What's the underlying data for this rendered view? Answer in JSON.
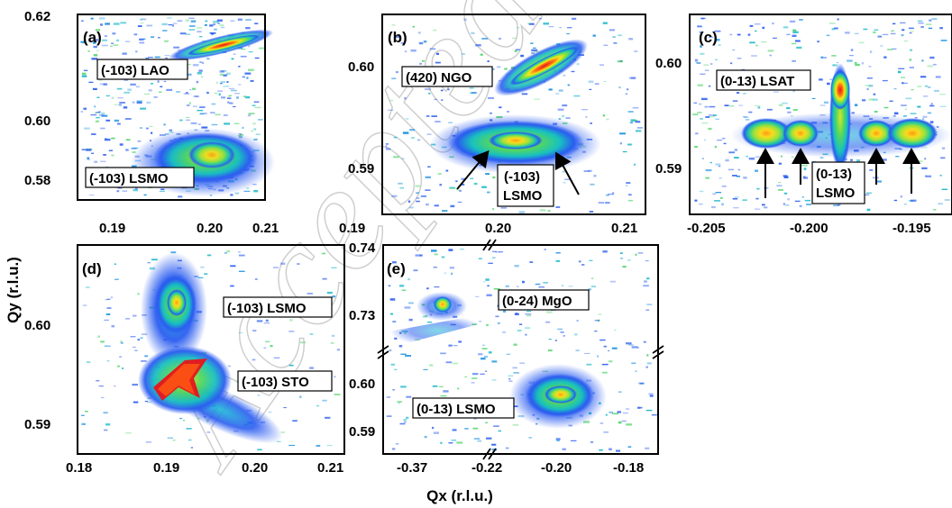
{
  "chart_data": [
    {
      "type": "heatmap",
      "panel": "(a)",
      "xlim": [
        0.185,
        0.21
      ],
      "ylim": [
        0.572,
        0.62
      ],
      "x_ticks": [
        "0.19",
        "0.20",
        "0.21"
      ],
      "y_ticks": [
        "0.62",
        "0.60",
        "0.58"
      ],
      "peaks": [
        {
          "label": "(-103) LAO",
          "x": 0.2,
          "y": 0.612
        },
        {
          "label": "(-103) LSMO",
          "x": 0.198,
          "y": 0.584
        }
      ]
    },
    {
      "type": "heatmap",
      "panel": "(b)",
      "xlim": [
        0.19,
        0.21
      ],
      "ylim": [
        0.585,
        0.605
      ],
      "x_ticks": [
        "0.19",
        "0.20",
        "0.21"
      ],
      "y_ticks": [
        "0.60",
        "0.59"
      ],
      "peaks": [
        {
          "label": "(420) NGO",
          "x": 0.2015,
          "y": 0.5995
        },
        {
          "label": "(-103)\nLSMO",
          "x": 0.201,
          "y": 0.592
        }
      ]
    },
    {
      "type": "heatmap",
      "panel": "(c)",
      "xlim": [
        -0.2065,
        -0.1925
      ],
      "ylim": [
        0.585,
        0.605
      ],
      "x_ticks": [
        "-0.205",
        "-0.200",
        "-0.195"
      ],
      "y_ticks": [
        "0.60",
        "0.59"
      ],
      "peaks": [
        {
          "label": "(0-13) LSAT",
          "x": -0.1988,
          "y": 0.597
        },
        {
          "label": "(0-13)\nLSMO",
          "x": -0.1988,
          "y": 0.5925
        }
      ]
    },
    {
      "type": "heatmap",
      "panel": "(d)",
      "xlim": [
        0.18,
        0.21
      ],
      "ylim": [
        0.586,
        0.607
      ],
      "x_ticks": [
        "0.18",
        "0.19",
        "0.20",
        "0.21"
      ],
      "y_ticks": [
        "0.60",
        "0.59"
      ],
      "peaks": [
        {
          "label": "(-103) LSMO",
          "x": 0.1925,
          "y": 0.6015
        },
        {
          "label": "(-103) STO",
          "x": 0.191,
          "y": 0.5945
        }
      ]
    },
    {
      "type": "heatmap",
      "panel": "(e)",
      "x_ticks": [
        "-0.37",
        "-0.22",
        "-0.20",
        "-0.18"
      ],
      "y_ticks": [
        "0.74",
        "0.73",
        "0.60",
        "0.59"
      ],
      "axis_breaks": true,
      "peaks": [
        {
          "label": "(0-24) MgO",
          "x": -0.35,
          "y": 0.7335
        },
        {
          "label": "(0-13) LSMO",
          "x": -0.2,
          "y": 0.5975
        }
      ]
    }
  ],
  "figure": {
    "ylabel": "Qy (r.l.u.)",
    "xlabel": "Qx (r.l.u.)",
    "watermark": "Accepted Ma"
  }
}
